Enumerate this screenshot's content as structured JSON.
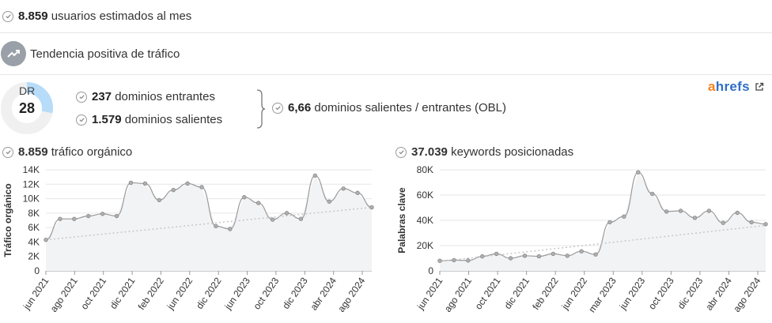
{
  "summary": {
    "users_value": "8.859",
    "users_label": "usuarios estimados al mes",
    "trend_label": "Tendencia positiva de tráfico"
  },
  "domain_rating": {
    "label": "DR",
    "value": "28",
    "fraction": 0.28
  },
  "links": {
    "incoming_value": "237",
    "incoming_label": "dominios entrantes",
    "outgoing_value": "1.579",
    "outgoing_label": "dominios salientes",
    "obl_value": "6,66",
    "obl_label": "dominios salientes / entrantes (OBL)"
  },
  "brand": {
    "logo_a": "a",
    "logo_rest": "hrefs",
    "accent_orange": "#f58220",
    "accent_blue": "#2f6fc6"
  },
  "chart_data": [
    {
      "type": "area",
      "header_value": "8.859",
      "header_label": "tráfico orgánico",
      "ylabel": "Tráfico orgánico",
      "ylim": [
        0,
        14000
      ],
      "yticks": [
        "0",
        "2K",
        "4K",
        "6K",
        "8K",
        "10K",
        "12K",
        "14K"
      ],
      "tick_labels": [
        "jun 2021",
        "ago 2021",
        "oct 2021",
        "dic 2021",
        "feb 2022",
        "jun 2022",
        "dic 2022",
        "jun 2023",
        "oct 2023",
        "dic 2023",
        "abr 2024",
        "ago 2024"
      ],
      "values": [
        4300,
        7200,
        7200,
        7600,
        7900,
        7600,
        12200,
        12100,
        9800,
        11200,
        12100,
        11600,
        6200,
        5800,
        10200,
        9400,
        7100,
        8000,
        7200,
        13200,
        9600,
        11400,
        10800,
        8800
      ],
      "trend": [
        4300,
        8800
      ],
      "grid": true
    },
    {
      "type": "area",
      "header_value": "37.039",
      "header_label": "keywords posicionadas",
      "ylabel": "Palabras clave",
      "ylim": [
        0,
        80000
      ],
      "yticks": [
        "0",
        "20K",
        "40K",
        "60K",
        "80K"
      ],
      "tick_labels": [
        "jun 2021",
        "ago 2021",
        "oct 2021",
        "dic 2021",
        "feb 2022",
        "jun 2022",
        "mar 2023",
        "jun 2023",
        "oct 2023",
        "dic 2023",
        "abr 2024",
        "ago 2024"
      ],
      "values": [
        8000,
        8500,
        8200,
        11500,
        13500,
        10000,
        12000,
        11500,
        13500,
        12000,
        15500,
        13000,
        38500,
        43000,
        78000,
        61000,
        47000,
        47500,
        42000,
        47500,
        38000,
        46000,
        38500,
        37000
      ],
      "trend": [
        7500,
        36000
      ],
      "grid": true
    }
  ]
}
